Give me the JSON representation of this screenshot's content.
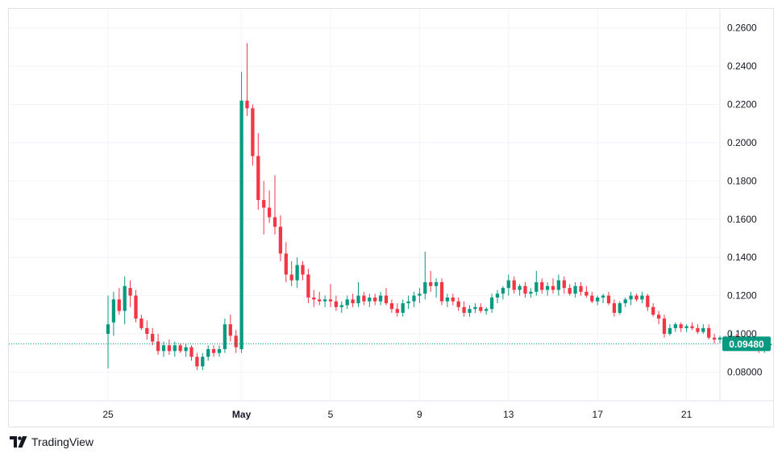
{
  "brand": {
    "name": "TradingView",
    "logo_icon": "tradingview-logo-icon"
  },
  "colors": {
    "up": "#089981",
    "down": "#f23645",
    "grid": "#f0f3fa",
    "text": "#131722",
    "price_line": "#089981"
  },
  "chart_data": {
    "type": "candlestick",
    "y_axis": {
      "ticks": [
        "0.08000",
        "0.1000",
        "0.1200",
        "0.1400",
        "0.1600",
        "0.1800",
        "0.2000",
        "0.2200",
        "0.2400",
        "0.2600"
      ],
      "range": [
        0.065,
        0.27
      ],
      "position": "right"
    },
    "x_axis": {
      "labels": [
        {
          "text": "25",
          "day": 0,
          "bold": false
        },
        {
          "text": "May",
          "day": 6,
          "bold": true
        },
        {
          "text": "5",
          "day": 10,
          "bold": false
        },
        {
          "text": "9",
          "day": 14,
          "bold": false
        },
        {
          "text": "13",
          "day": 18,
          "bold": false
        },
        {
          "text": "17",
          "day": 22,
          "bold": false
        },
        {
          "text": "21",
          "day": 26,
          "bold": false
        }
      ]
    },
    "last_price": "0.09480",
    "last_price_value": 0.0948,
    "grid": true,
    "candles": [
      [
        0.1,
        0.12,
        0.082,
        0.105
      ],
      [
        0.106,
        0.122,
        0.099,
        0.118
      ],
      [
        0.118,
        0.124,
        0.11,
        0.112
      ],
      [
        0.112,
        0.13,
        0.105,
        0.125
      ],
      [
        0.124,
        0.128,
        0.114,
        0.12
      ],
      [
        0.12,
        0.123,
        0.106,
        0.108
      ],
      [
        0.108,
        0.11,
        0.102,
        0.103
      ],
      [
        0.103,
        0.107,
        0.097,
        0.1
      ],
      [
        0.1,
        0.103,
        0.094,
        0.096
      ],
      [
        0.096,
        0.1,
        0.089,
        0.091
      ],
      [
        0.091,
        0.096,
        0.088,
        0.094
      ],
      [
        0.094,
        0.097,
        0.089,
        0.091
      ],
      [
        0.091,
        0.096,
        0.088,
        0.094
      ],
      [
        0.094,
        0.095,
        0.09,
        0.091
      ],
      [
        0.091,
        0.095,
        0.088,
        0.093
      ],
      [
        0.093,
        0.094,
        0.086,
        0.088
      ],
      [
        0.088,
        0.09,
        0.081,
        0.083
      ],
      [
        0.083,
        0.09,
        0.081,
        0.088
      ],
      [
        0.088,
        0.094,
        0.086,
        0.092
      ],
      [
        0.092,
        0.094,
        0.088,
        0.09
      ],
      [
        0.09,
        0.094,
        0.088,
        0.092
      ],
      [
        0.092,
        0.108,
        0.09,
        0.105
      ],
      [
        0.105,
        0.11,
        0.096,
        0.099
      ],
      [
        0.099,
        0.102,
        0.09,
        0.093
      ],
      [
        0.092,
        0.237,
        0.09,
        0.222
      ],
      [
        0.222,
        0.252,
        0.214,
        0.218
      ],
      [
        0.218,
        0.22,
        0.188,
        0.193
      ],
      [
        0.193,
        0.205,
        0.165,
        0.17
      ],
      [
        0.17,
        0.18,
        0.152,
        0.166
      ],
      [
        0.166,
        0.175,
        0.158,
        0.161
      ],
      [
        0.161,
        0.183,
        0.152,
        0.156
      ],
      [
        0.156,
        0.162,
        0.138,
        0.142
      ],
      [
        0.142,
        0.148,
        0.127,
        0.131
      ],
      [
        0.131,
        0.138,
        0.125,
        0.128
      ],
      [
        0.128,
        0.14,
        0.124,
        0.136
      ],
      [
        0.136,
        0.138,
        0.128,
        0.131
      ],
      [
        0.131,
        0.134,
        0.116,
        0.119
      ],
      [
        0.119,
        0.123,
        0.114,
        0.118
      ],
      [
        0.118,
        0.122,
        0.115,
        0.117
      ],
      [
        0.117,
        0.12,
        0.114,
        0.118
      ],
      [
        0.118,
        0.126,
        0.114,
        0.117
      ],
      [
        0.117,
        0.12,
        0.112,
        0.114
      ],
      [
        0.114,
        0.117,
        0.111,
        0.115
      ],
      [
        0.115,
        0.12,
        0.113,
        0.118
      ],
      [
        0.118,
        0.121,
        0.114,
        0.116
      ],
      [
        0.116,
        0.127,
        0.114,
        0.12
      ],
      [
        0.12,
        0.122,
        0.115,
        0.117
      ],
      [
        0.117,
        0.121,
        0.114,
        0.119
      ],
      [
        0.119,
        0.121,
        0.115,
        0.117
      ],
      [
        0.117,
        0.122,
        0.115,
        0.12
      ],
      [
        0.12,
        0.124,
        0.115,
        0.116
      ],
      [
        0.116,
        0.118,
        0.111,
        0.113
      ],
      [
        0.113,
        0.116,
        0.109,
        0.111
      ],
      [
        0.111,
        0.118,
        0.109,
        0.116
      ],
      [
        0.116,
        0.12,
        0.113,
        0.117
      ],
      [
        0.117,
        0.122,
        0.114,
        0.12
      ],
      [
        0.12,
        0.124,
        0.116,
        0.121
      ],
      [
        0.121,
        0.143,
        0.118,
        0.127
      ],
      [
        0.127,
        0.133,
        0.122,
        0.125
      ],
      [
        0.125,
        0.129,
        0.119,
        0.127
      ],
      [
        0.127,
        0.129,
        0.115,
        0.117
      ],
      [
        0.117,
        0.121,
        0.114,
        0.119
      ],
      [
        0.119,
        0.121,
        0.115,
        0.117
      ],
      [
        0.117,
        0.119,
        0.112,
        0.114
      ],
      [
        0.114,
        0.117,
        0.109,
        0.111
      ],
      [
        0.111,
        0.115,
        0.109,
        0.113
      ],
      [
        0.113,
        0.116,
        0.111,
        0.114
      ],
      [
        0.114,
        0.116,
        0.111,
        0.112
      ],
      [
        0.112,
        0.114,
        0.11,
        0.113
      ],
      [
        0.113,
        0.121,
        0.111,
        0.119
      ],
      [
        0.119,
        0.123,
        0.116,
        0.121
      ],
      [
        0.121,
        0.125,
        0.118,
        0.124
      ],
      [
        0.124,
        0.131,
        0.12,
        0.128
      ],
      [
        0.128,
        0.13,
        0.121,
        0.123
      ],
      [
        0.123,
        0.126,
        0.12,
        0.125
      ],
      [
        0.125,
        0.127,
        0.119,
        0.121
      ],
      [
        0.121,
        0.124,
        0.119,
        0.122
      ],
      [
        0.122,
        0.133,
        0.12,
        0.127
      ],
      [
        0.127,
        0.129,
        0.121,
        0.123
      ],
      [
        0.123,
        0.127,
        0.12,
        0.125
      ],
      [
        0.125,
        0.129,
        0.121,
        0.123
      ],
      [
        0.123,
        0.131,
        0.12,
        0.128
      ],
      [
        0.128,
        0.13,
        0.121,
        0.124
      ],
      [
        0.124,
        0.126,
        0.12,
        0.121
      ],
      [
        0.121,
        0.127,
        0.119,
        0.125
      ],
      [
        0.125,
        0.127,
        0.12,
        0.122
      ],
      [
        0.122,
        0.125,
        0.119,
        0.12
      ],
      [
        0.12,
        0.122,
        0.116,
        0.117
      ],
      [
        0.117,
        0.12,
        0.115,
        0.119
      ],
      [
        0.119,
        0.121,
        0.116,
        0.12
      ],
      [
        0.12,
        0.122,
        0.115,
        0.116
      ],
      [
        0.116,
        0.118,
        0.109,
        0.111
      ],
      [
        0.111,
        0.117,
        0.11,
        0.116
      ],
      [
        0.116,
        0.119,
        0.114,
        0.118
      ],
      [
        0.118,
        0.122,
        0.115,
        0.12
      ],
      [
        0.12,
        0.121,
        0.117,
        0.118
      ],
      [
        0.118,
        0.122,
        0.116,
        0.12
      ],
      [
        0.12,
        0.121,
        0.112,
        0.114
      ],
      [
        0.114,
        0.116,
        0.109,
        0.11
      ],
      [
        0.11,
        0.112,
        0.105,
        0.108
      ],
      [
        0.108,
        0.11,
        0.098,
        0.1
      ],
      [
        0.1,
        0.105,
        0.099,
        0.103
      ],
      [
        0.103,
        0.106,
        0.101,
        0.105
      ],
      [
        0.105,
        0.106,
        0.101,
        0.103
      ],
      [
        0.103,
        0.105,
        0.101,
        0.104
      ],
      [
        0.104,
        0.106,
        0.102,
        0.103
      ],
      [
        0.103,
        0.105,
        0.1,
        0.101
      ],
      [
        0.101,
        0.105,
        0.1,
        0.103
      ],
      [
        0.103,
        0.105,
        0.097,
        0.098
      ],
      [
        0.098,
        0.1,
        0.095,
        0.097
      ],
      [
        0.097,
        0.099,
        0.095,
        0.098
      ],
      [
        0.098,
        0.099,
        0.095,
        0.097
      ],
      [
        0.097,
        0.101,
        0.096,
        0.099
      ],
      [
        0.099,
        0.1,
        0.096,
        0.097
      ],
      [
        0.097,
        0.098,
        0.095,
        0.096
      ],
      [
        0.096,
        0.098,
        0.094,
        0.095
      ],
      [
        0.095,
        0.097,
        0.093,
        0.096
      ],
      [
        0.096,
        0.097,
        0.09,
        0.092
      ],
      [
        0.092,
        0.095,
        0.09,
        0.094
      ],
      [
        0.094,
        0.095,
        0.093,
        0.0948
      ]
    ]
  }
}
